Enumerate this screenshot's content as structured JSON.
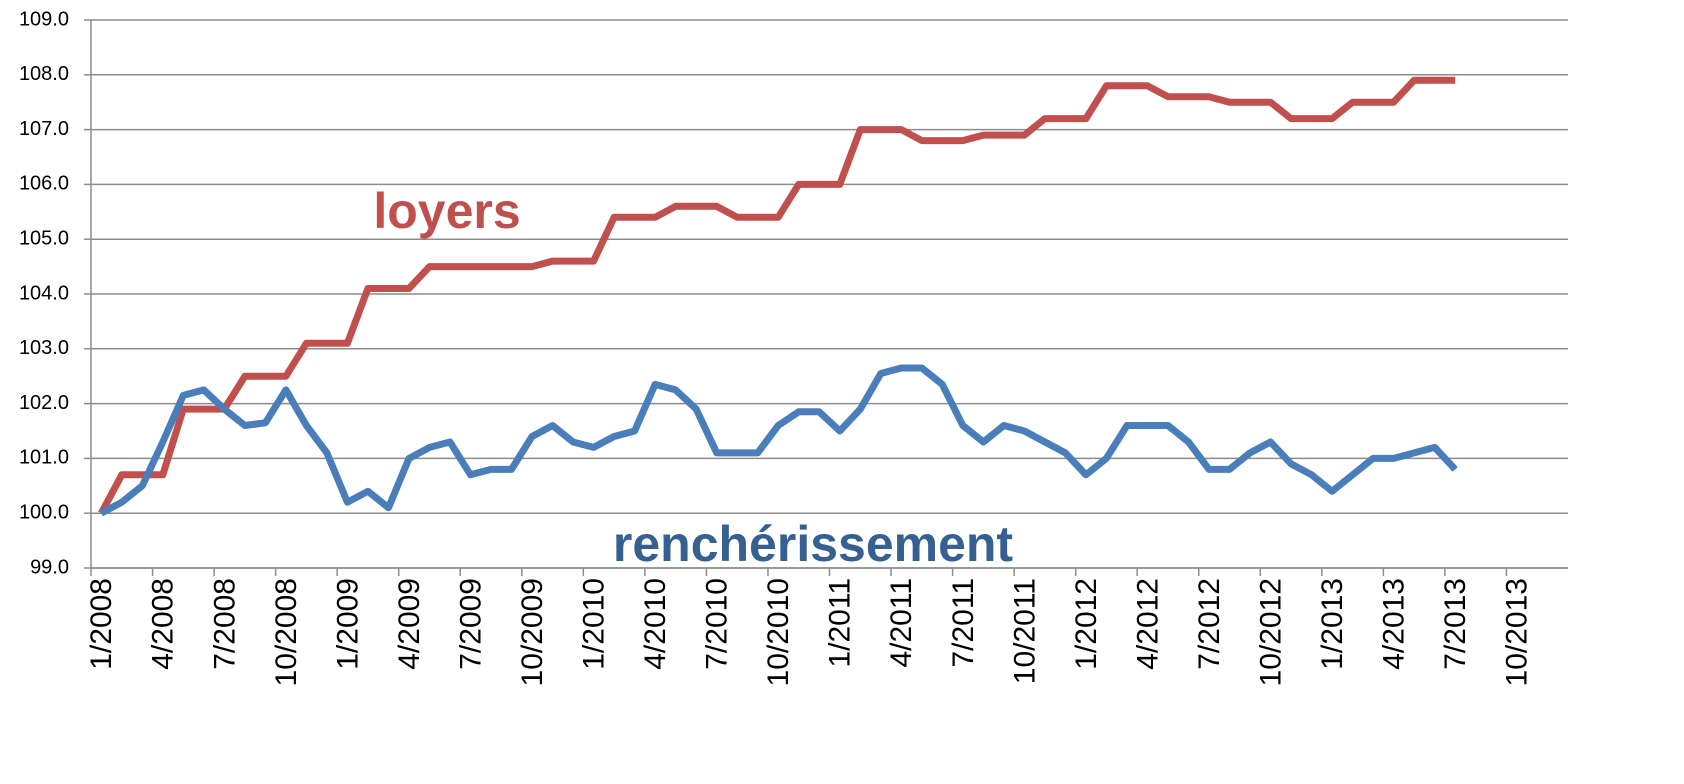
{
  "chart_data": {
    "type": "line",
    "categories": [
      "1/2008",
      null,
      null,
      "4/2008",
      null,
      null,
      "7/2008",
      null,
      null,
      "10/2008",
      null,
      null,
      "1/2009",
      null,
      null,
      "4/2009",
      null,
      null,
      "7/2009",
      null,
      null,
      "10/2009",
      null,
      null,
      "1/2010",
      null,
      null,
      "4/2010",
      null,
      null,
      "7/2010",
      null,
      null,
      "10/2010",
      null,
      null,
      "1/2011",
      null,
      null,
      "4/2011",
      null,
      null,
      "7/2011",
      null,
      null,
      "10/2011",
      null,
      null,
      "1/2012",
      null,
      null,
      "4/2012",
      null,
      null,
      "7/2012",
      null,
      null,
      "10/2012",
      null,
      null,
      "1/2013",
      null,
      null,
      "4/2013",
      null,
      null,
      "7/2013",
      null,
      null,
      "10/2013",
      null,
      null
    ],
    "series": [
      {
        "name": "loyers",
        "color": "#c0504d",
        "values": [
          100.0,
          100.7,
          100.7,
          100.7,
          101.9,
          101.9,
          101.9,
          102.5,
          102.5,
          102.5,
          103.1,
          103.1,
          103.1,
          104.1,
          104.1,
          104.1,
          104.5,
          104.5,
          104.5,
          104.5,
          104.5,
          104.5,
          104.6,
          104.6,
          104.6,
          105.4,
          105.4,
          105.4,
          105.6,
          105.6,
          105.6,
          105.4,
          105.4,
          105.4,
          106.0,
          106.0,
          106.0,
          107.0,
          107.0,
          107.0,
          106.8,
          106.8,
          106.8,
          106.9,
          106.9,
          106.9,
          107.2,
          107.2,
          107.2,
          107.8,
          107.8,
          107.8,
          107.6,
          107.6,
          107.6,
          107.5,
          107.5,
          107.5,
          107.2,
          107.2,
          107.2,
          107.5,
          107.5,
          107.5,
          107.9,
          107.9,
          107.9,
          null,
          null,
          null,
          null,
          null
        ]
      },
      {
        "name": "renchérissement",
        "color": "#4a7ebb",
        "values": [
          100.0,
          100.2,
          100.5,
          101.3,
          102.15,
          102.25,
          101.9,
          101.6,
          101.65,
          102.25,
          101.6,
          101.1,
          100.2,
          100.4,
          100.1,
          101.0,
          101.2,
          101.3,
          100.7,
          100.8,
          100.8,
          101.4,
          101.6,
          101.3,
          101.2,
          101.4,
          101.5,
          102.35,
          102.25,
          101.9,
          101.1,
          101.1,
          101.1,
          101.6,
          101.85,
          101.85,
          101.5,
          101.9,
          102.55,
          102.65,
          102.65,
          102.35,
          101.6,
          101.3,
          101.6,
          101.5,
          101.3,
          101.1,
          100.7,
          101.0,
          101.6,
          101.6,
          101.6,
          101.3,
          100.8,
          100.8,
          101.1,
          101.3,
          100.9,
          100.7,
          100.4,
          100.7,
          101.0,
          101.0,
          101.1,
          101.2,
          100.8,
          null,
          null,
          null,
          null,
          null
        ]
      }
    ],
    "ylim": [
      99,
      109
    ],
    "yticks": [
      {
        "value": 99,
        "label": "99.0"
      },
      {
        "value": 100,
        "label": "100.0"
      },
      {
        "value": 101,
        "label": "101.0"
      },
      {
        "value": 102,
        "label": "102.0"
      },
      {
        "value": 103,
        "label": "103.0"
      },
      {
        "value": 104,
        "label": "104.0"
      },
      {
        "value": 105,
        "label": "105.0"
      },
      {
        "value": 106,
        "label": "106.0"
      },
      {
        "value": 107,
        "label": "107.0"
      },
      {
        "value": 108,
        "label": "108.0"
      },
      {
        "value": 109,
        "label": "109.0"
      }
    ],
    "grid": true
  }
}
